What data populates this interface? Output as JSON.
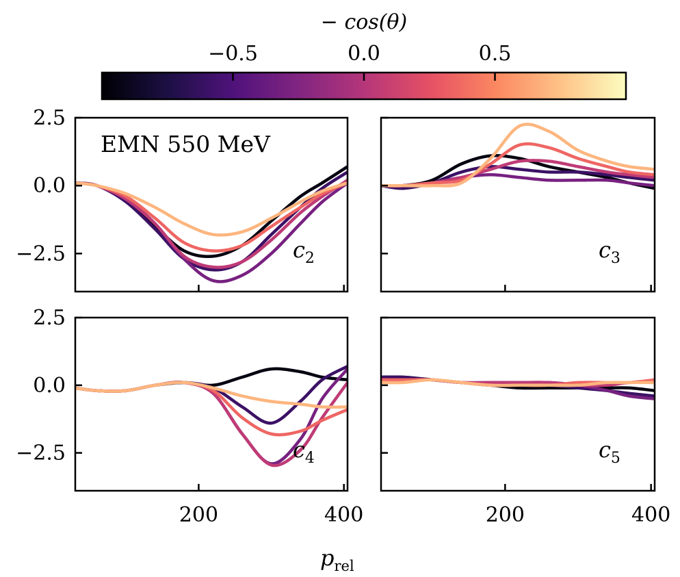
{
  "colorbar": {
    "label": "− cos(θ)",
    "range": [
      -1,
      1
    ],
    "ticks": [
      -0.5,
      0.0,
      0.5
    ],
    "tick_labels": [
      "−0.5",
      "0.0",
      "0.5"
    ],
    "colormap": "magma",
    "stops": [
      "#000004",
      "#1c1044",
      "#4f127b",
      "#812581",
      "#b5367a",
      "#e55064",
      "#fb8761",
      "#fec287",
      "#fcfdbf"
    ]
  },
  "x_axis_label": "p_rel",
  "annotation": "EMN 550 MeV",
  "chart_data": [
    {
      "type": "line",
      "label": "c2",
      "label_main": "c",
      "label_sub": "2",
      "xlim": [
        30,
        405
      ],
      "ylim": [
        -3.9,
        2.5
      ],
      "xticks": [
        200,
        400
      ],
      "xtick_labels": [
        "200",
        "400"
      ],
      "yticks": [
        2.5,
        0.0,
        -2.5
      ],
      "ytick_labels": [
        "2.5",
        "0.0",
        "−2.5"
      ],
      "show_xticklabels": false,
      "show_yticklabels": true,
      "series": [
        {
          "color_value": -0.95,
          "x": [
            30,
            60,
            100,
            140,
            180,
            220,
            260,
            300,
            340,
            370,
            405
          ],
          "y": [
            0.1,
            0.0,
            -0.5,
            -1.5,
            -2.4,
            -2.6,
            -2.2,
            -1.3,
            -0.4,
            0.1,
            0.7
          ]
        },
        {
          "color_value": -0.6,
          "x": [
            30,
            60,
            100,
            140,
            180,
            220,
            260,
            300,
            340,
            370,
            405
          ],
          "y": [
            0.1,
            0.0,
            -0.6,
            -1.6,
            -2.7,
            -3.1,
            -2.8,
            -1.8,
            -0.8,
            -0.1,
            0.5
          ]
        },
        {
          "color_value": -0.3,
          "x": [
            30,
            60,
            100,
            140,
            180,
            220,
            260,
            300,
            340,
            370,
            405
          ],
          "y": [
            0.1,
            0.0,
            -0.5,
            -1.4,
            -2.7,
            -3.5,
            -3.3,
            -2.5,
            -1.4,
            -0.6,
            0.1
          ]
        },
        {
          "color_value": 0.05,
          "x": [
            30,
            60,
            100,
            140,
            180,
            220,
            260,
            300,
            340,
            370,
            405
          ],
          "y": [
            0.1,
            0.0,
            -0.5,
            -1.4,
            -2.6,
            -3.0,
            -2.8,
            -2.0,
            -1.0,
            -0.4,
            0.2
          ]
        },
        {
          "color_value": 0.35,
          "x": [
            30,
            60,
            100,
            140,
            180,
            220,
            260,
            300,
            340,
            370,
            405
          ],
          "y": [
            0.1,
            0.0,
            -0.4,
            -1.2,
            -2.1,
            -2.4,
            -2.2,
            -1.5,
            -0.8,
            -0.3,
            0.1
          ]
        },
        {
          "color_value": 0.7,
          "x": [
            30,
            60,
            100,
            140,
            180,
            220,
            260,
            300,
            340,
            370,
            405
          ],
          "y": [
            0.1,
            0.0,
            -0.3,
            -0.8,
            -1.4,
            -1.8,
            -1.7,
            -1.2,
            -0.6,
            -0.2,
            0.1
          ]
        }
      ]
    },
    {
      "type": "line",
      "label": "c3",
      "label_main": "c",
      "label_sub": "3",
      "xlim": [
        30,
        405
      ],
      "ylim": [
        -3.9,
        2.5
      ],
      "xticks": [
        200,
        400
      ],
      "xtick_labels": [
        "200",
        "400"
      ],
      "yticks": [
        2.5,
        0.0,
        -2.5
      ],
      "ytick_labels": [
        "2.5",
        "0.0",
        "−2.5"
      ],
      "show_xticklabels": false,
      "show_yticklabels": false,
      "series": [
        {
          "color_value": -0.95,
          "x": [
            30,
            60,
            100,
            140,
            180,
            220,
            260,
            300,
            340,
            370,
            405
          ],
          "y": [
            0.0,
            0.0,
            0.2,
            0.8,
            1.1,
            1.0,
            0.7,
            0.5,
            0.3,
            0.1,
            -0.1
          ]
        },
        {
          "color_value": -0.6,
          "x": [
            30,
            60,
            100,
            140,
            180,
            220,
            260,
            300,
            340,
            370,
            405
          ],
          "y": [
            0.0,
            -0.1,
            0.1,
            0.5,
            0.7,
            0.6,
            0.5,
            0.5,
            0.4,
            0.3,
            0.2
          ]
        },
        {
          "color_value": -0.3,
          "x": [
            30,
            60,
            100,
            140,
            180,
            220,
            260,
            300,
            340,
            370,
            405
          ],
          "y": [
            0.0,
            0.0,
            0.1,
            0.3,
            0.4,
            0.3,
            0.2,
            0.2,
            0.2,
            0.1,
            0.0
          ]
        },
        {
          "color_value": 0.05,
          "x": [
            30,
            60,
            100,
            140,
            180,
            220,
            260,
            300,
            340,
            370,
            405
          ],
          "y": [
            0.0,
            0.0,
            0.1,
            0.3,
            0.6,
            0.9,
            0.9,
            0.7,
            0.5,
            0.4,
            0.3
          ]
        },
        {
          "color_value": 0.35,
          "x": [
            30,
            60,
            100,
            140,
            180,
            220,
            260,
            300,
            340,
            370,
            405
          ],
          "y": [
            0.0,
            0.0,
            0.1,
            0.2,
            0.8,
            1.5,
            1.4,
            1.0,
            0.7,
            0.5,
            0.4
          ]
        },
        {
          "color_value": 0.7,
          "x": [
            30,
            60,
            100,
            140,
            180,
            220,
            260,
            300,
            340,
            370,
            405
          ],
          "y": [
            0.0,
            0.0,
            0.0,
            0.1,
            1.0,
            2.2,
            2.0,
            1.3,
            0.9,
            0.7,
            0.6
          ]
        }
      ]
    },
    {
      "type": "line",
      "label": "c4",
      "label_main": "c",
      "label_sub": "4",
      "xlim": [
        30,
        405
      ],
      "ylim": [
        -3.9,
        2.5
      ],
      "xticks": [
        200,
        400
      ],
      "xtick_labels": [
        "200",
        "400"
      ],
      "yticks": [
        2.5,
        0.0,
        -2.5
      ],
      "ytick_labels": [
        "2.5",
        "0.0",
        "−2.5"
      ],
      "show_xticklabels": true,
      "show_yticklabels": true,
      "series": [
        {
          "color_value": -0.95,
          "x": [
            30,
            60,
            100,
            140,
            180,
            220,
            260,
            300,
            340,
            370,
            405
          ],
          "y": [
            -0.1,
            -0.2,
            -0.2,
            0.0,
            0.1,
            0.0,
            0.3,
            0.6,
            0.5,
            0.3,
            0.2
          ]
        },
        {
          "color_value": -0.6,
          "x": [
            30,
            60,
            100,
            140,
            180,
            220,
            260,
            300,
            340,
            370,
            405
          ],
          "y": [
            -0.1,
            -0.2,
            -0.2,
            0.0,
            0.1,
            -0.1,
            -0.8,
            -1.4,
            -0.6,
            0.2,
            0.7
          ]
        },
        {
          "color_value": -0.3,
          "x": [
            30,
            60,
            100,
            140,
            180,
            220,
            260,
            300,
            340,
            370,
            405
          ],
          "y": [
            -0.1,
            -0.2,
            -0.2,
            0.0,
            0.1,
            -0.3,
            -1.8,
            -2.9,
            -2.0,
            -0.5,
            0.6
          ]
        },
        {
          "color_value": 0.05,
          "x": [
            30,
            60,
            100,
            140,
            180,
            220,
            260,
            300,
            340,
            370,
            405
          ],
          "y": [
            -0.1,
            -0.2,
            -0.2,
            0.0,
            0.1,
            -0.3,
            -1.8,
            -2.95,
            -2.4,
            -1.2,
            0.1
          ]
        },
        {
          "color_value": 0.35,
          "x": [
            30,
            60,
            100,
            140,
            180,
            220,
            260,
            300,
            340,
            370,
            405
          ],
          "y": [
            -0.1,
            -0.2,
            -0.2,
            0.0,
            0.1,
            -0.2,
            -1.2,
            -1.8,
            -1.7,
            -1.3,
            -0.9
          ]
        },
        {
          "color_value": 0.7,
          "x": [
            30,
            60,
            100,
            140,
            180,
            220,
            260,
            300,
            340,
            370,
            405
          ],
          "y": [
            -0.1,
            -0.2,
            -0.2,
            0.0,
            0.1,
            -0.1,
            -0.4,
            -0.6,
            -0.7,
            -0.8,
            -0.8
          ]
        }
      ]
    },
    {
      "type": "line",
      "label": "c5",
      "label_main": "c",
      "label_sub": "5",
      "xlim": [
        30,
        405
      ],
      "ylim": [
        -3.9,
        2.5
      ],
      "xticks": [
        200,
        400
      ],
      "xtick_labels": [
        "200",
        "400"
      ],
      "yticks": [
        2.5,
        0.0,
        -2.5
      ],
      "ytick_labels": [
        "2.5",
        "0.0",
        "−2.5"
      ],
      "show_xticklabels": true,
      "show_yticklabels": false,
      "series": [
        {
          "color_value": -0.95,
          "x": [
            30,
            60,
            100,
            140,
            180,
            220,
            260,
            300,
            340,
            370,
            405
          ],
          "y": [
            0.3,
            0.3,
            0.2,
            0.1,
            0.0,
            -0.1,
            -0.1,
            -0.1,
            -0.1,
            -0.1,
            -0.2
          ]
        },
        {
          "color_value": -0.6,
          "x": [
            30,
            60,
            100,
            140,
            180,
            220,
            260,
            300,
            340,
            370,
            405
          ],
          "y": [
            0.3,
            0.3,
            0.2,
            0.1,
            0.0,
            0.0,
            0.0,
            -0.1,
            -0.2,
            -0.3,
            -0.4
          ]
        },
        {
          "color_value": -0.3,
          "x": [
            30,
            60,
            100,
            140,
            180,
            220,
            260,
            300,
            340,
            370,
            405
          ],
          "y": [
            0.2,
            0.2,
            0.2,
            0.1,
            0.1,
            0.1,
            0.1,
            0.0,
            -0.2,
            -0.4,
            -0.5
          ]
        },
        {
          "color_value": 0.05,
          "x": [
            30,
            60,
            100,
            140,
            180,
            220,
            260,
            300,
            340,
            370,
            405
          ],
          "y": [
            0.2,
            0.2,
            0.2,
            0.1,
            0.1,
            0.1,
            0.1,
            0.0,
            0.0,
            0.1,
            0.1
          ]
        },
        {
          "color_value": 0.35,
          "x": [
            30,
            60,
            100,
            140,
            180,
            220,
            260,
            300,
            340,
            370,
            405
          ],
          "y": [
            0.2,
            0.2,
            0.2,
            0.1,
            0.0,
            0.0,
            0.0,
            0.1,
            0.1,
            0.1,
            0.2
          ]
        },
        {
          "color_value": 0.7,
          "x": [
            30,
            60,
            100,
            140,
            180,
            220,
            260,
            300,
            340,
            370,
            405
          ],
          "y": [
            0.1,
            0.1,
            0.2,
            0.1,
            0.0,
            0.0,
            0.0,
            0.0,
            0.1,
            0.1,
            0.1
          ]
        }
      ]
    }
  ]
}
